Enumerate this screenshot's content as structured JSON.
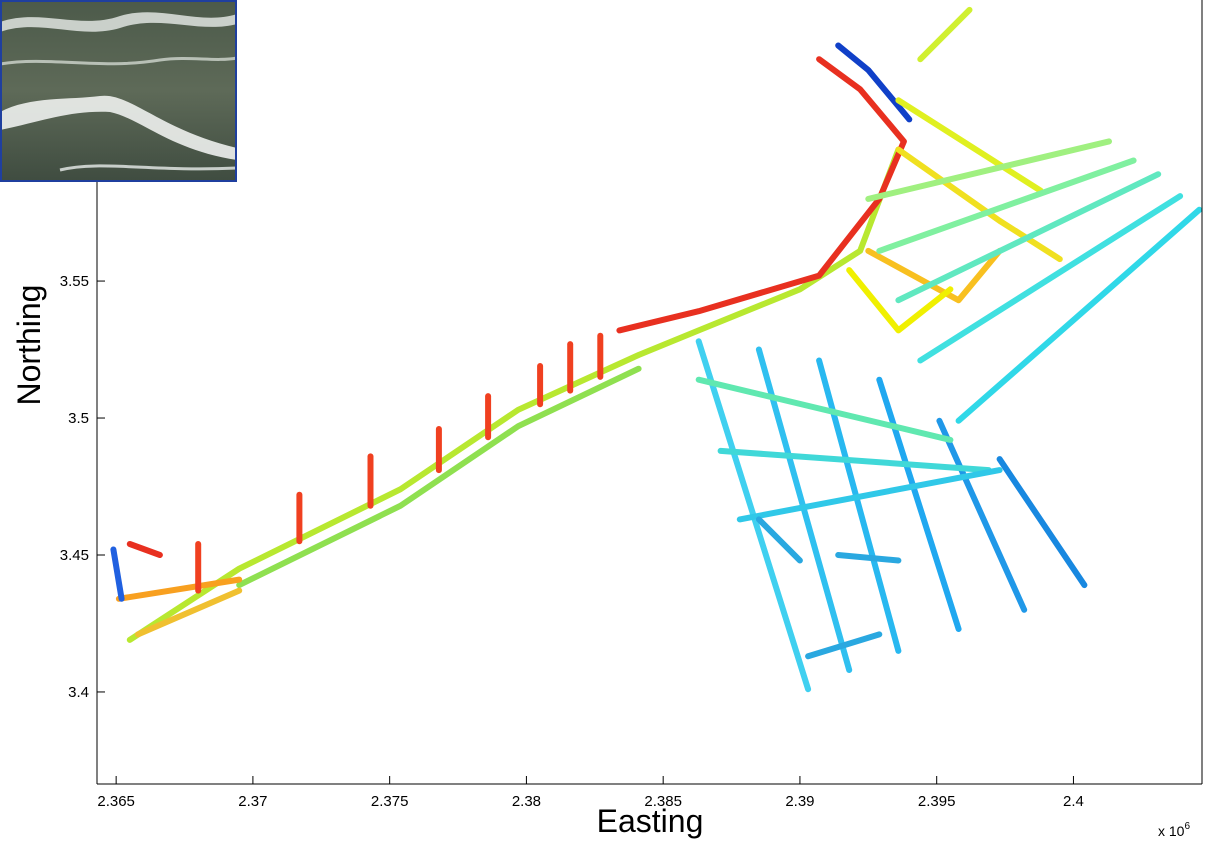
{
  "chart_data": {
    "type": "line",
    "xlabel": "Easting",
    "ylabel": "Northing",
    "x_offset_text": "x 10",
    "x_offset_exponent": "6",
    "xlim": [
      2.3643,
      2.4047
    ],
    "ylim": [
      3.3664,
      3.6526
    ],
    "xticks": [
      2.365,
      2.37,
      2.375,
      2.38,
      2.385,
      2.39,
      2.395,
      2.4
    ],
    "yticks": [
      3.4,
      3.45,
      3.5,
      3.55
    ],
    "series": [
      {
        "color": "#b8e830",
        "x": [
          2.3655,
          2.3695,
          2.3754,
          2.3797,
          2.3841,
          2.3863,
          2.39,
          2.3922,
          2.3936
        ],
        "y": [
          3.419,
          3.445,
          3.474,
          3.503,
          3.523,
          3.532,
          3.547,
          3.561,
          3.598
        ]
      },
      {
        "color": "#8fe050",
        "x": [
          2.3695,
          2.3754,
          2.3797,
          2.3841
        ],
        "y": [
          3.439,
          3.468,
          3.497,
          3.518
        ]
      },
      {
        "color": "#e83020",
        "x": [
          2.3834,
          2.3863,
          2.3907,
          2.3929,
          2.3938,
          2.3922,
          2.3907
        ],
        "y": [
          3.532,
          3.539,
          3.552,
          3.58,
          3.601,
          3.62,
          3.631
        ]
      },
      {
        "color": "#1040c8",
        "x": [
          2.3914,
          2.3925,
          2.394
        ],
        "y": [
          3.636,
          3.627,
          3.609
        ]
      },
      {
        "color": "#f0e020",
        "x": [
          2.3936,
          2.3973,
          2.3995
        ],
        "y": [
          3.598,
          3.572,
          3.558
        ]
      },
      {
        "color": "#e0f020",
        "x": [
          2.3936,
          2.3988
        ],
        "y": [
          3.616,
          3.583
        ]
      },
      {
        "color": "#d0f030",
        "x": [
          2.3944,
          2.3962
        ],
        "y": [
          3.631,
          3.649
        ]
      },
      {
        "color": "#f8c020",
        "x": [
          2.3925,
          2.3958,
          2.3973
        ],
        "y": [
          3.561,
          3.543,
          3.561
        ]
      },
      {
        "color": "#f0f000",
        "x": [
          2.3918,
          2.3936,
          2.3955
        ],
        "y": [
          3.554,
          3.532,
          3.547
        ]
      },
      {
        "color": "#30d8e8",
        "x": [
          2.3958,
          2.4046
        ],
        "y": [
          3.499,
          3.576
        ]
      },
      {
        "color": "#40e0e0",
        "x": [
          2.3944,
          2.4039
        ],
        "y": [
          3.521,
          3.581
        ]
      },
      {
        "color": "#60e8c0",
        "x": [
          2.3936,
          2.4031
        ],
        "y": [
          3.543,
          3.589
        ]
      },
      {
        "color": "#80f0a0",
        "x": [
          2.3929,
          2.4022
        ],
        "y": [
          3.561,
          3.594
        ]
      },
      {
        "color": "#a0f080",
        "x": [
          2.3925,
          2.4013
        ],
        "y": [
          3.58,
          3.601
        ]
      },
      {
        "color": "#40d0f0",
        "x": [
          2.3863,
          2.3903
        ],
        "y": [
          3.528,
          3.401
        ]
      },
      {
        "color": "#30c0f0",
        "x": [
          2.3885,
          2.3918
        ],
        "y": [
          3.525,
          3.408
        ]
      },
      {
        "color": "#28b8f0",
        "x": [
          2.3907,
          2.3936
        ],
        "y": [
          3.521,
          3.415
        ]
      },
      {
        "color": "#20a8f0",
        "x": [
          2.3929,
          2.3958
        ],
        "y": [
          3.514,
          3.423
        ]
      },
      {
        "color": "#2098e8",
        "x": [
          2.3951,
          2.3982
        ],
        "y": [
          3.499,
          3.43
        ]
      },
      {
        "color": "#1888e0",
        "x": [
          2.3973,
          2.4004
        ],
        "y": [
          3.485,
          3.439
        ]
      },
      {
        "color": "#60e8b0",
        "x": [
          2.3863,
          2.3955
        ],
        "y": [
          3.514,
          3.492
        ]
      },
      {
        "color": "#40d8d8",
        "x": [
          2.3871,
          2.3969
        ],
        "y": [
          3.488,
          3.481
        ]
      },
      {
        "color": "#30c8e8",
        "x": [
          2.3878,
          2.3973
        ],
        "y": [
          3.463,
          3.481
        ]
      },
      {
        "color": "#2aa8e0",
        "x": [
          2.3885,
          2.39
        ],
        "y": [
          3.463,
          3.448
        ]
      },
      {
        "color": "#2aa8e0",
        "x": [
          2.3914,
          2.3936
        ],
        "y": [
          3.45,
          3.448
        ]
      },
      {
        "color": "#2aa8e0",
        "x": [
          2.3903,
          2.3929
        ],
        "y": [
          3.413,
          3.421
        ]
      },
      {
        "color": "#f8a020",
        "x": [
          2.3651,
          2.3695
        ],
        "y": [
          3.434,
          3.441
        ]
      },
      {
        "color": "#f0c030",
        "x": [
          2.3658,
          2.3695
        ],
        "y": [
          3.421,
          3.437
        ]
      },
      {
        "color": "#2060e0",
        "x": [
          2.3649,
          2.3652
        ],
        "y": [
          3.452,
          3.434
        ]
      },
      {
        "color": "#e83020",
        "x": [
          2.3655,
          2.3666
        ],
        "y": [
          3.454,
          3.45
        ]
      },
      {
        "color": "#f04020",
        "x": [
          2.368,
          2.368
        ],
        "y": [
          3.437,
          3.454
        ]
      },
      {
        "color": "#f04020",
        "x": [
          2.3717,
          2.3717
        ],
        "y": [
          3.455,
          3.472
        ]
      },
      {
        "color": "#f04020",
        "x": [
          2.3743,
          2.3743
        ],
        "y": [
          3.468,
          3.486
        ]
      },
      {
        "color": "#f04020",
        "x": [
          2.3768,
          2.3768
        ],
        "y": [
          3.481,
          3.496
        ]
      },
      {
        "color": "#f04020",
        "x": [
          2.3786,
          2.3786
        ],
        "y": [
          3.493,
          3.508
        ]
      },
      {
        "color": "#f04020",
        "x": [
          2.3805,
          2.3805
        ],
        "y": [
          3.505,
          3.519
        ]
      },
      {
        "color": "#f04020",
        "x": [
          2.3816,
          2.3816
        ],
        "y": [
          3.51,
          3.527
        ]
      },
      {
        "color": "#f04020",
        "x": [
          2.3827,
          2.3827
        ],
        "y": [
          3.515,
          3.53
        ]
      }
    ]
  }
}
